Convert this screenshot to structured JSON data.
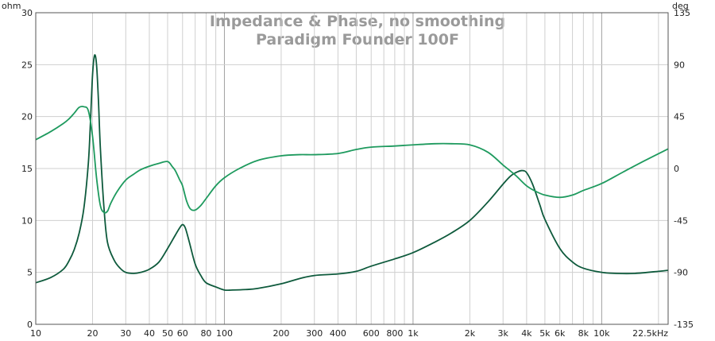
{
  "chart_data": {
    "type": "line",
    "title": "Impedance & Phase, no smoothing",
    "subtitle": "Paradigm Founder 100F",
    "xscale": "log",
    "xlim": [
      10,
      22500
    ],
    "ylim_left": [
      0,
      30
    ],
    "ylim_right": [
      -135,
      135
    ],
    "ylabel_left": "ohm",
    "ylabel_right": "deg",
    "x_ticks": [
      {
        "v": 10,
        "label": "10"
      },
      {
        "v": 20,
        "label": "20"
      },
      {
        "v": 30,
        "label": "30"
      },
      {
        "v": 40,
        "label": "40"
      },
      {
        "v": 50,
        "label": "50"
      },
      {
        "v": 60,
        "label": "60"
      },
      {
        "v": 80,
        "label": "80"
      },
      {
        "v": 100,
        "label": "100"
      },
      {
        "v": 200,
        "label": "200"
      },
      {
        "v": 300,
        "label": "300"
      },
      {
        "v": 400,
        "label": "400"
      },
      {
        "v": 600,
        "label": "600"
      },
      {
        "v": 800,
        "label": "800"
      },
      {
        "v": 1000,
        "label": "1k"
      },
      {
        "v": 2000,
        "label": "2k"
      },
      {
        "v": 3000,
        "label": "3k"
      },
      {
        "v": 4000,
        "label": "4k"
      },
      {
        "v": 5000,
        "label": "5k"
      },
      {
        "v": 6000,
        "label": "6k"
      },
      {
        "v": 8000,
        "label": "8k"
      },
      {
        "v": 10000,
        "label": "10k"
      },
      {
        "v": 22500,
        "label": "22.5kHz"
      }
    ],
    "y_left_ticks": [
      "0",
      "5",
      "10",
      "15",
      "20",
      "25",
      "30"
    ],
    "y_right_ticks": [
      "-135",
      "-90",
      "-45",
      "0",
      "45",
      "90",
      "135"
    ],
    "grid": true,
    "colors": {
      "impedance": "#0e5a3c",
      "phase": "#1e9a5e",
      "grid": "#cfcfcf",
      "major_grid": "#a0a0a0",
      "title": "#9a9a9a"
    },
    "series": [
      {
        "axis": "left",
        "x": [
          10,
          12,
          14,
          15,
          16,
          17,
          18,
          19,
          19.5,
          20,
          20.5,
          21,
          21.5,
          22,
          23,
          24,
          26,
          28,
          30,
          33,
          36,
          40,
          45,
          50,
          55,
          58,
          60,
          62,
          65,
          70,
          75,
          80,
          90,
          100,
          110,
          130,
          150,
          200,
          250,
          300,
          400,
          500,
          600,
          800,
          1000,
          1300,
          1600,
          2000,
          2500,
          3000,
          3300,
          3600,
          3800,
          4000,
          4300,
          4700,
          5000,
          6000,
          7000,
          8000,
          10000,
          12000,
          15000,
          20000,
          22500
        ],
        "y": [
          4.0,
          4.5,
          5.3,
          6.1,
          7.2,
          8.8,
          11.2,
          15.5,
          19.5,
          24.0,
          25.9,
          25.0,
          21.5,
          17.0,
          11.2,
          7.9,
          6.2,
          5.4,
          5.0,
          4.9,
          5.0,
          5.3,
          6.0,
          7.3,
          8.6,
          9.3,
          9.6,
          9.3,
          8.0,
          5.8,
          4.7,
          4.0,
          3.6,
          3.3,
          3.3,
          3.35,
          3.45,
          3.9,
          4.4,
          4.7,
          4.85,
          5.1,
          5.6,
          6.3,
          6.9,
          7.9,
          8.8,
          10.0,
          11.8,
          13.5,
          14.3,
          14.7,
          14.8,
          14.6,
          13.5,
          11.5,
          10.1,
          7.3,
          6.0,
          5.4,
          5.0,
          4.9,
          4.9,
          5.1,
          5.2
        ]
      },
      {
        "axis": "right",
        "x": [
          10,
          12,
          14,
          15,
          16,
          17,
          18,
          19,
          20,
          21,
          22,
          23,
          24,
          25,
          27,
          30,
          33,
          36,
          40,
          45,
          50,
          53,
          55,
          58,
          60,
          63,
          66,
          70,
          75,
          80,
          90,
          100,
          120,
          150,
          200,
          250,
          300,
          400,
          500,
          600,
          800,
          1000,
          1300,
          1600,
          2000,
          2500,
          3000,
          3500,
          4000,
          4500,
          5000,
          6000,
          7000,
          8000,
          10000,
          13000,
          17000,
          22500
        ],
        "y": [
          25,
          32,
          39,
          43,
          48,
          53,
          53.5,
          50,
          28,
          -8,
          -32,
          -38,
          -37,
          -30,
          -20,
          -10,
          -5,
          -1,
          2,
          4.5,
          6,
          1.5,
          -2,
          -10,
          -15,
          -28,
          -35,
          -36,
          -32,
          -26,
          -15,
          -8,
          0,
          7,
          11,
          12,
          12,
          13,
          16.5,
          18.5,
          19.5,
          20.5,
          21.5,
          21.5,
          20.5,
          14,
          3,
          -6,
          -15,
          -20,
          -23,
          -25,
          -23,
          -19,
          -13,
          -3,
          7,
          17
        ]
      }
    ]
  }
}
